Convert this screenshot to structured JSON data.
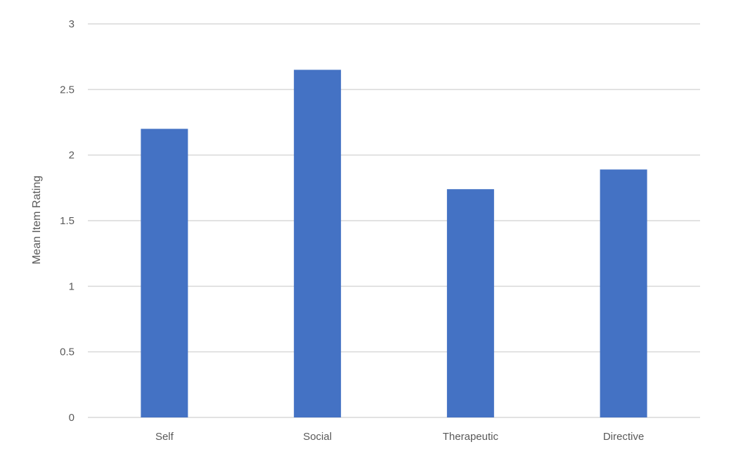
{
  "chart_data": {
    "type": "bar",
    "title": "",
    "xlabel": "",
    "ylabel": "Mean Item Rating",
    "categories": [
      "Self",
      "Social",
      "Therapeutic",
      "Directive"
    ],
    "values": [
      2.2,
      2.65,
      1.74,
      1.89
    ],
    "ylim": [
      0,
      3
    ],
    "yticks": [
      0,
      0.5,
      1,
      1.5,
      2,
      2.5,
      3
    ],
    "ytick_labels": [
      "0",
      "0.5",
      "1",
      "1.5",
      "2",
      "2.5",
      "3"
    ],
    "grid": true,
    "legend": "none",
    "colors": {
      "bar": "#4472C4",
      "grid": "#D9D9D9",
      "text": "#595959"
    }
  }
}
